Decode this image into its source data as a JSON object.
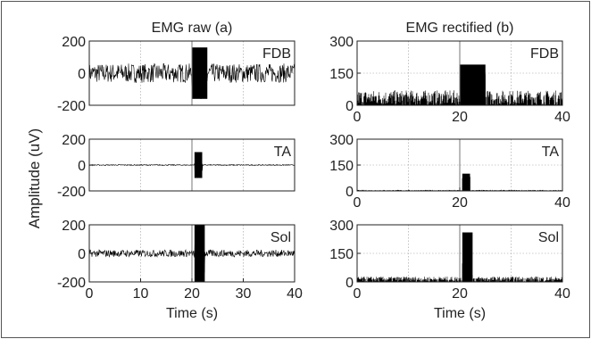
{
  "figure": {
    "ylabel": "Amplitude (uV)"
  },
  "chart_data": [
    {
      "type": "line",
      "title": "EMG raw (a)",
      "muscle": "FDB",
      "xlim": [
        0,
        40
      ],
      "ylim": [
        -200,
        200
      ],
      "yticks": [
        "200",
        "0",
        "-200"
      ],
      "xticks": [],
      "xlabel": "",
      "noise_amplitude": 60,
      "event_time": 20,
      "burst": {
        "start": 20,
        "end": 23,
        "amplitude": 160
      }
    },
    {
      "type": "line",
      "title": "EMG rectified (b)",
      "muscle": "FDB",
      "xlim": [
        0,
        40
      ],
      "ylim": [
        0,
        300
      ],
      "yticks": [
        "300",
        "150",
        "0"
      ],
      "xticks": [
        "0",
        "20",
        "40"
      ],
      "xlabel": "",
      "noise_amplitude": 70,
      "event_time": 20,
      "burst": {
        "start": 20,
        "end": 25,
        "amplitude": 190
      }
    },
    {
      "type": "line",
      "title": "",
      "muscle": "TA",
      "xlim": [
        0,
        40
      ],
      "ylim": [
        -200,
        200
      ],
      "yticks": [
        "200",
        "0",
        "-200"
      ],
      "xticks": [],
      "xlabel": "",
      "noise_amplitude": 4,
      "event_time": 20,
      "burst": {
        "start": 20.5,
        "end": 22,
        "amplitude": 100
      }
    },
    {
      "type": "line",
      "title": "",
      "muscle": "TA",
      "xlim": [
        0,
        40
      ],
      "ylim": [
        0,
        300
      ],
      "yticks": [
        "300",
        "150",
        "0"
      ],
      "xticks": [
        "0",
        "20",
        "40"
      ],
      "xlabel": "",
      "noise_amplitude": 6,
      "event_time": 20,
      "burst": {
        "start": 20.5,
        "end": 22,
        "amplitude": 100
      }
    },
    {
      "type": "line",
      "title": "",
      "muscle": "Sol",
      "xlim": [
        0,
        40
      ],
      "ylim": [
        -200,
        200
      ],
      "yticks": [
        "200",
        "0",
        "-200"
      ],
      "xticks": [
        "0",
        "10",
        "20",
        "30",
        "40"
      ],
      "xlabel": "Time (s)",
      "noise_amplitude": 25,
      "event_time": 20,
      "burst": {
        "start": 20.5,
        "end": 22.5,
        "amplitude": 200
      }
    },
    {
      "type": "line",
      "title": "",
      "muscle": "Sol",
      "xlim": [
        0,
        40
      ],
      "ylim": [
        0,
        300
      ],
      "yticks": [
        "300",
        "150",
        "0"
      ],
      "xticks": [
        "0",
        "20",
        "40"
      ],
      "xlabel": "Time (s)",
      "noise_amplitude": 28,
      "event_time": 20,
      "burst": {
        "start": 20.5,
        "end": 22.5,
        "amplitude": 260
      }
    }
  ]
}
